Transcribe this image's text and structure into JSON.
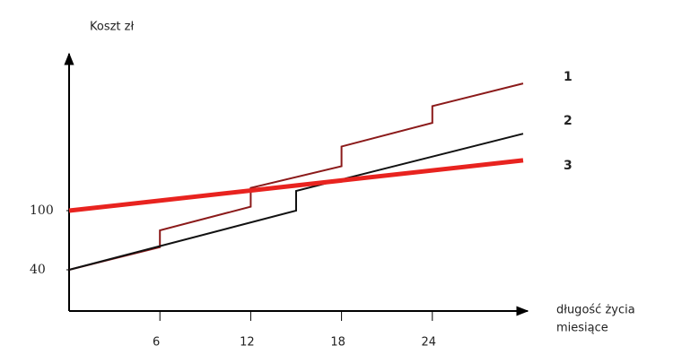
{
  "chart_data": {
    "type": "line",
    "y_label": "Koszt zł",
    "x_label": [
      "długość życia",
      "miesiące"
    ],
    "xlim": [
      0,
      30
    ],
    "ylim": [
      0,
      255
    ],
    "xticks": [
      6,
      12,
      18,
      24
    ],
    "yticks": [
      40,
      100
    ],
    "series": [
      {
        "name": "1",
        "color": "#8b1a1a",
        "x": [
          0,
          6,
          6,
          12,
          12,
          18,
          18,
          24,
          24,
          30
        ],
        "values": [
          40,
          63,
          80,
          104,
          123,
          145,
          165,
          189,
          206,
          229
        ]
      },
      {
        "name": "2",
        "color": "#111111",
        "x": [
          0,
          15,
          15,
          30
        ],
        "values": [
          40,
          100,
          120,
          178
        ]
      },
      {
        "name": "3",
        "color": "#e8231f",
        "x": [
          0,
          30
        ],
        "values": [
          100,
          151
        ]
      }
    ]
  }
}
